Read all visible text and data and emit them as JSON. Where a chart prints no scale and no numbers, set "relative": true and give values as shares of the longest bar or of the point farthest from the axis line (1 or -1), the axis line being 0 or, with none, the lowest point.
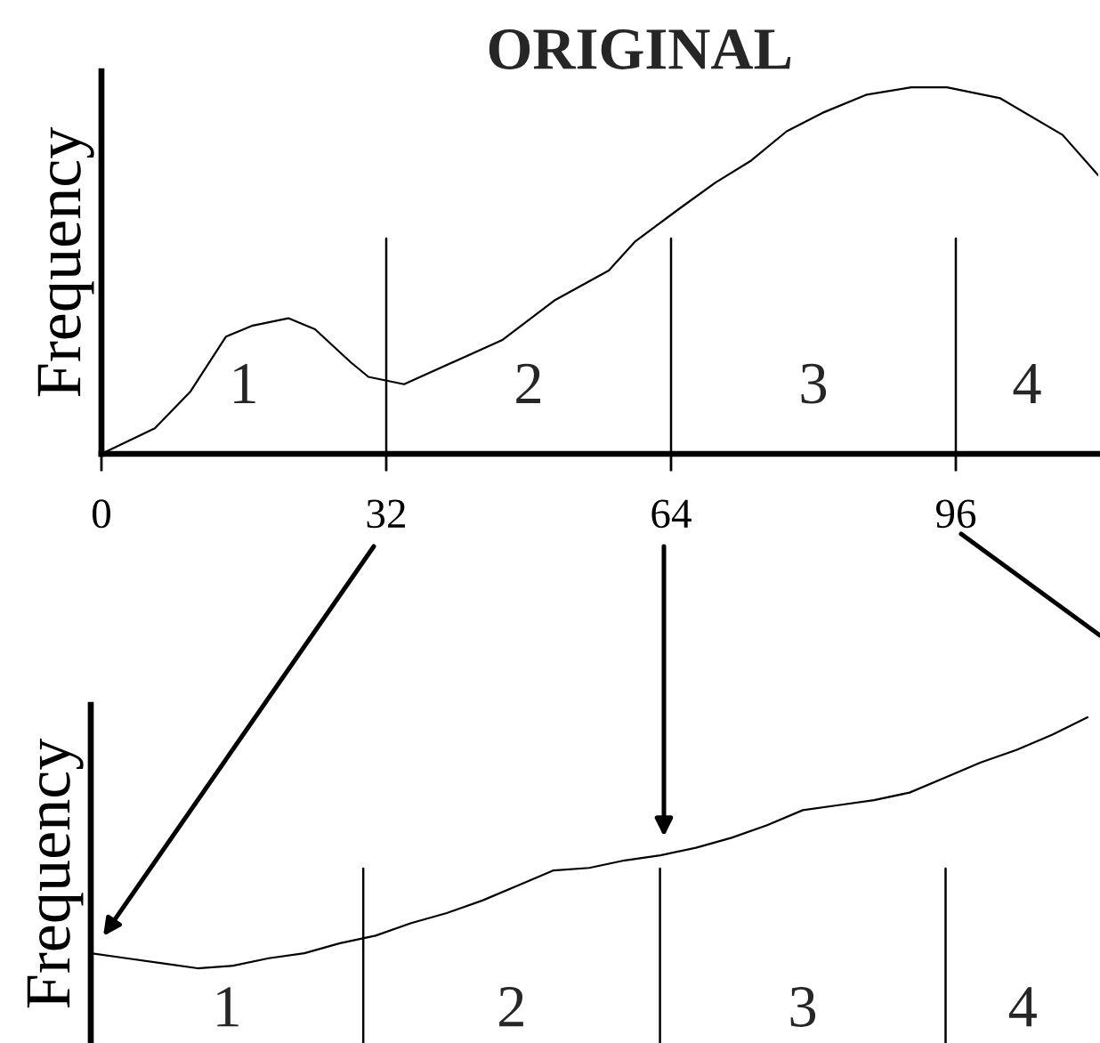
{
  "chart_data": [
    {
      "type": "line",
      "title": "ORIGINAL",
      "ylabel": "Frequency",
      "relative": true,
      "tick_labels": "x",
      "xlim": [
        0,
        112
      ],
      "xticks": [
        0,
        32,
        64,
        96
      ],
      "x": [
        0,
        6,
        10,
        14,
        17,
        21,
        24,
        28,
        30,
        34,
        45,
        51,
        57,
        60,
        65,
        69,
        73,
        77,
        81,
        86,
        91,
        95,
        101,
        108,
        112
      ],
      "series": [
        {
          "color": "#000000",
          "values": [
            0,
            0.07,
            0.17,
            0.32,
            0.35,
            0.37,
            0.34,
            0.25,
            0.21,
            0.19,
            0.31,
            0.42,
            0.5,
            0.58,
            0.67,
            0.74,
            0.8,
            0.88,
            0.93,
            0.98,
            1.0,
            1.0,
            0.97,
            0.87,
            0.76
          ]
        }
      ],
      "ref_lines": [
        {
          "axis": "x",
          "value": 32
        },
        {
          "axis": "x",
          "value": 64
        },
        {
          "axis": "x",
          "value": 96
        }
      ],
      "annotations": [
        "1",
        "2",
        "3",
        "4"
      ]
    },
    {
      "type": "line",
      "ylabel": "Frequency",
      "relative": true,
      "tick_labels": false,
      "categories": [
        null,
        null,
        null,
        null,
        null,
        null,
        null,
        null,
        null,
        null,
        null,
        null,
        null,
        null,
        null,
        null,
        null,
        null,
        null,
        null,
        null,
        null,
        null,
        null,
        null,
        null,
        null,
        null,
        null
      ],
      "series": [
        {
          "color": "#000000",
          "values": [
            0.06,
            0.04,
            0.02,
            0,
            0.01,
            0.04,
            0.06,
            0.1,
            0.13,
            0.18,
            0.22,
            0.27,
            0.33,
            0.39,
            0.4,
            0.43,
            0.45,
            0.48,
            0.52,
            0.57,
            0.63,
            0.65,
            0.67,
            0.7,
            0.76,
            0.82,
            0.87,
            0.93,
            1.0
          ]
        }
      ],
      "annotations": [
        "1",
        "2",
        "3",
        "4"
      ]
    }
  ]
}
